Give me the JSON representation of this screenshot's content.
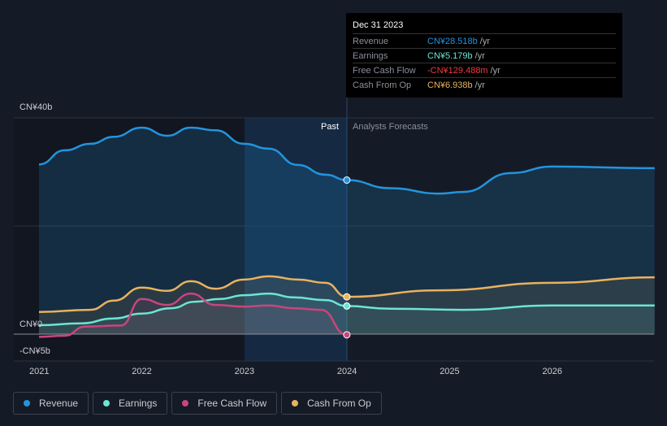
{
  "tooltip": {
    "date": "Dec 31 2023",
    "rows": [
      {
        "label": "Revenue",
        "value": "CN¥28.518b",
        "unit": "/yr",
        "color": "#2394df"
      },
      {
        "label": "Earnings",
        "value": "CN¥5.179b",
        "unit": "/yr",
        "color": "#6ce5d4"
      },
      {
        "label": "Free Cash Flow",
        "value": "-CN¥129.488m",
        "unit": "/yr",
        "color": "#f0393e"
      },
      {
        "label": "Cash From Op",
        "value": "CN¥6.938b",
        "unit": "/yr",
        "color": "#e9b25f"
      }
    ]
  },
  "chart_data": {
    "type": "line",
    "y_ticks": [
      {
        "value": 40,
        "label": "CN¥40b"
      },
      {
        "value": 0,
        "label": "CN¥0"
      },
      {
        "value": -5,
        "label": "-CN¥5b"
      }
    ],
    "x_ticks": [
      "2021",
      "2022",
      "2023",
      "2024",
      "2025",
      "2026"
    ],
    "ylim": [
      -5,
      40
    ],
    "xlim": [
      2020.75,
      2027.0
    ],
    "past_label": "Past",
    "forecast_label": "Analysts Forecasts",
    "divider_x": 2024.0,
    "series": [
      {
        "name": "Revenue",
        "color": "#2394df",
        "points": [
          [
            2021,
            31.4
          ],
          [
            2021.25,
            34
          ],
          [
            2021.5,
            35.2
          ],
          [
            2021.73,
            36.5
          ],
          [
            2022,
            38.2
          ],
          [
            2022.25,
            36.7
          ],
          [
            2022.48,
            38.2
          ],
          [
            2022.72,
            37.7
          ],
          [
            2023,
            35.2
          ],
          [
            2023.24,
            34.3
          ],
          [
            2023.52,
            31.3
          ],
          [
            2023.79,
            29.5
          ],
          [
            2024,
            28.5
          ],
          [
            2024.42,
            27
          ],
          [
            2024.9,
            26
          ],
          [
            2025.13,
            26.3
          ],
          [
            2025.6,
            29.8
          ],
          [
            2026,
            31
          ],
          [
            2027,
            30.7
          ]
        ]
      },
      {
        "name": "Earnings",
        "color": "#6ce5d4",
        "points": [
          [
            2021,
            1.65
          ],
          [
            2021.41,
            2
          ],
          [
            2021.73,
            2.9
          ],
          [
            2022,
            3.8
          ],
          [
            2022.29,
            4.8
          ],
          [
            2022.52,
            6
          ],
          [
            2022.76,
            6.5
          ],
          [
            2023,
            7.2
          ],
          [
            2023.24,
            7.5
          ],
          [
            2023.48,
            6.8
          ],
          [
            2023.79,
            6.3
          ],
          [
            2024,
            5.2
          ],
          [
            2024.42,
            4.7
          ],
          [
            2025.13,
            4.5
          ],
          [
            2026,
            5.3
          ],
          [
            2027,
            5.3
          ]
        ]
      },
      {
        "name": "Free Cash Flow",
        "color": "#c9457e",
        "points": [
          [
            2021,
            -0.5
          ],
          [
            2021.25,
            -0.3
          ],
          [
            2021.45,
            1.4
          ],
          [
            2021.8,
            1.6
          ],
          [
            2022,
            6.5
          ],
          [
            2022.25,
            5.4
          ],
          [
            2022.48,
            7.5
          ],
          [
            2022.72,
            5.4
          ],
          [
            2023,
            5.1
          ],
          [
            2023.24,
            5.3
          ],
          [
            2023.48,
            4.8
          ],
          [
            2023.75,
            4.5
          ],
          [
            2024,
            -0.13
          ]
        ]
      },
      {
        "name": "Cash From Op",
        "color": "#e9b25f",
        "points": [
          [
            2021,
            4.1
          ],
          [
            2021.5,
            4.5
          ],
          [
            2021.73,
            6.2
          ],
          [
            2022,
            8.6
          ],
          [
            2022.25,
            8
          ],
          [
            2022.48,
            9.8
          ],
          [
            2022.72,
            8.4
          ],
          [
            2023,
            10.1
          ],
          [
            2023.24,
            10.7
          ],
          [
            2023.52,
            10.1
          ],
          [
            2023.79,
            9.5
          ],
          [
            2024,
            6.9
          ],
          [
            2024.9,
            8.1
          ],
          [
            2026,
            9.5
          ],
          [
            2027,
            10.5
          ]
        ]
      }
    ]
  },
  "legend": [
    "Revenue",
    "Earnings",
    "Free Cash Flow",
    "Cash From Op"
  ]
}
